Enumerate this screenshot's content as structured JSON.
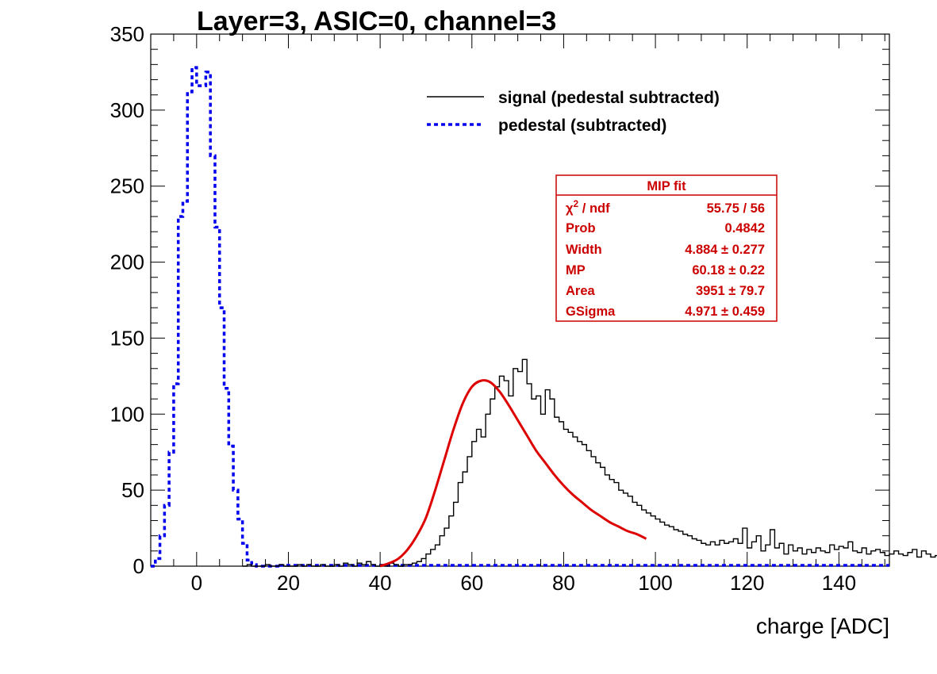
{
  "chart_data": {
    "type": "line",
    "title": "Layer=3, ASIC=0, channel=3",
    "xlabel": "charge [ADC]",
    "ylabel": "",
    "xlim": [
      -10,
      151
    ],
    "ylim": [
      0,
      350
    ],
    "x_ticks": [
      0,
      20,
      40,
      60,
      80,
      100,
      120,
      140
    ],
    "y_ticks": [
      0,
      50,
      100,
      150,
      200,
      250,
      300,
      350
    ],
    "x_tick_labels": [
      "0",
      "20",
      "40",
      "60",
      "80",
      "100",
      "120",
      "140"
    ],
    "y_tick_labels": [
      "0",
      "50",
      "100",
      "150",
      "200",
      "250",
      "300",
      "350"
    ],
    "bin_width": 1,
    "series": [
      {
        "name": "signal (pedestal subtracted)",
        "style": "histogram-step",
        "color": "#000000",
        "x_start": 10,
        "values": [
          0,
          1,
          0,
          0,
          0,
          1,
          0,
          0,
          1,
          0,
          0,
          0,
          1,
          0,
          1,
          0,
          0,
          1,
          0,
          0,
          1,
          0,
          2,
          1,
          0,
          2,
          1,
          3,
          1,
          0,
          1,
          0,
          2,
          1,
          0,
          1,
          1,
          2,
          3,
          5,
          8,
          11,
          14,
          20,
          25,
          33,
          42,
          55,
          62,
          72,
          82,
          90,
          85,
          100,
          110,
          118,
          125,
          122,
          112,
          130,
          128,
          136,
          120,
          110,
          112,
          100,
          116,
          110,
          98,
          95,
          90,
          88,
          85,
          82,
          80,
          76,
          72,
          68,
          65,
          60,
          57,
          55,
          50,
          48,
          46,
          42,
          40,
          37,
          35,
          33,
          31,
          29,
          27,
          26,
          24,
          23,
          21,
          20,
          18,
          17,
          15,
          14,
          16,
          14,
          17,
          15,
          16,
          18,
          15,
          25,
          12,
          16,
          20,
          10,
          14,
          24,
          12,
          15,
          8,
          14,
          10,
          12,
          8,
          11,
          9,
          12,
          10,
          9,
          14,
          11,
          13,
          12,
          16,
          10,
          9,
          12,
          8,
          10,
          11,
          9,
          7,
          8,
          10,
          8,
          7,
          9,
          11,
          6,
          10,
          8,
          6,
          7
        ]
      },
      {
        "name": "pedestal (subtracted)",
        "style": "histogram-step-dashed",
        "color": "#0000ee",
        "x_start": -10,
        "values": [
          0,
          5,
          20,
          40,
          75,
          120,
          230,
          240,
          312,
          328,
          316,
          316,
          325,
          270,
          223,
          170,
          117,
          79,
          50,
          31,
          15,
          4,
          1,
          0,
          0,
          0,
          0,
          0
        ]
      },
      {
        "name": "MIP fit",
        "style": "curve",
        "color": "#dd0000",
        "x": [
          40,
          42,
          44,
          46,
          48,
          50,
          52,
          54,
          56,
          58,
          60,
          62,
          64,
          66,
          68,
          70,
          72,
          74,
          76,
          78,
          80,
          82,
          84,
          86,
          88,
          90,
          92,
          94,
          96,
          98
        ],
        "values": [
          0,
          2,
          5,
          11,
          20,
          32,
          50,
          70,
          90,
          107,
          118,
          122,
          121,
          115,
          106,
          96,
          86,
          76,
          68,
          60,
          53,
          47,
          42,
          37,
          33,
          29,
          26,
          23,
          21,
          18
        ]
      }
    ],
    "legend": {
      "position": "top-right",
      "entries": [
        {
          "label": "signal (pedestal subtracted)",
          "style": "solid",
          "color": "#000000"
        },
        {
          "label": "pedestal (subtracted)",
          "style": "dashed",
          "color": "#0000ee"
        }
      ]
    },
    "stats_box": {
      "title": "MIP fit",
      "rows": [
        {
          "name_main": "χ",
          "name_sup": "2",
          "name_rest": " / ndf",
          "value": "55.75 / 56"
        },
        {
          "name_main": "Prob",
          "value": "0.4842"
        },
        {
          "name_main": "Width",
          "value": "4.884 ± 0.277"
        },
        {
          "name_main": "MP",
          "value": "60.18 ± 0.22"
        },
        {
          "name_main": "Area",
          "value": "3951 ± 79.7"
        },
        {
          "name_main": "GSigma",
          "value": "4.971 ± 0.459"
        }
      ]
    }
  }
}
